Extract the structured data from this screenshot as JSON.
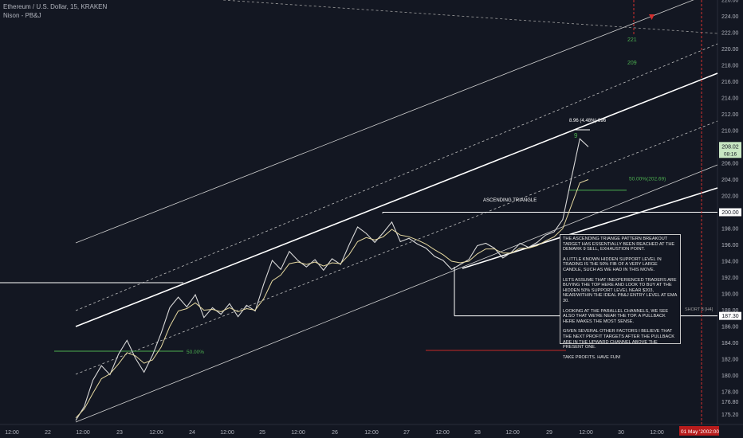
{
  "header": {
    "symbol_line": "Ethereum / U.S. Dollar, 15, KRAKEN",
    "indicator_line": "Nison - PB&J"
  },
  "colors": {
    "background": "#131722",
    "price": "#d8d8d8",
    "ema": "#e6d9a0",
    "trendline": "#ffffff",
    "fib": "#4caf50",
    "red_marker": "#d32f2f",
    "axis_text": "#b2b5be",
    "current_price_label": "#c7e6c2"
  },
  "chart_data": {
    "type": "line",
    "title": "",
    "y_axis": {
      "ylim": [
        174,
        226
      ],
      "ticks": [
        175.2,
        176.8,
        178,
        180,
        182,
        184,
        186,
        188,
        190,
        192,
        194,
        196,
        198,
        200,
        202,
        204,
        206,
        208,
        210,
        212,
        214,
        216,
        218,
        220,
        222,
        224,
        226
      ]
    },
    "x_axis": {
      "tick_labels": [
        "12:00",
        "22",
        "12:00",
        "23",
        "12:00",
        "24",
        "12:00",
        "25",
        "12:00",
        "26",
        "12:00",
        "27",
        "12:00",
        "28",
        "12:00",
        "29",
        "12:00",
        "30",
        "12:00",
        "31",
        "01 May '20",
        "02:00"
      ]
    },
    "series": [
      {
        "values": [
          174.5,
          176.2,
          179.4,
          181.2,
          180.1,
          182.6,
          184.3,
          182.1,
          180.4,
          182.5,
          185.2,
          188.3,
          189.6,
          188.4,
          189.9,
          187.1,
          188.3,
          187.5,
          188.8,
          187.2,
          188.6,
          187.9,
          191.2,
          194.1,
          193.0,
          195.2,
          194.1,
          193.3,
          194.2,
          192.9,
          194.3,
          193.6,
          196.0,
          198.2,
          197.4,
          196.3,
          197.5,
          198.8,
          196.4,
          196.8,
          196.1,
          195.6,
          194.6,
          194.1,
          193.0,
          193.6,
          194.2,
          195.9,
          196.2,
          195.6,
          194.4,
          195.1,
          196.2,
          195.7,
          196.3,
          197.2,
          197.6,
          199.1,
          204.1,
          209.0,
          208.02
        ]
      },
      {
        "values": [
          174.8,
          175.9,
          177.8,
          179.6,
          180.2,
          181.4,
          182.8,
          182.4,
          181.5,
          181.9,
          183.5,
          186.0,
          187.9,
          188.2,
          188.9,
          188.0,
          188.1,
          187.8,
          188.3,
          187.8,
          188.2,
          188.0,
          189.4,
          191.6,
          192.3,
          193.7,
          193.9,
          193.6,
          193.9,
          193.4,
          193.8,
          193.7,
          194.8,
          196.4,
          196.9,
          196.6,
          197.0,
          197.9,
          197.2,
          197.0,
          196.6,
          196.1,
          195.4,
          194.8,
          194.0,
          193.8,
          194.0,
          194.9,
          195.5,
          195.5,
          195.0,
          195.0,
          195.6,
          195.6,
          195.9,
          196.5,
          197.0,
          198.0,
          200.8,
          203.6,
          204.0
        ]
      }
    ],
    "price_levels": [
      {
        "label": "208.02",
        "value": 208.02,
        "sub_label": "08:16"
      },
      {
        "label": "200.00",
        "value": 200.0
      },
      {
        "label": "187.30",
        "value": 187.3
      }
    ],
    "annotations": {
      "ascending_triangle": "ASCENDING TRIANGLE",
      "fib_right": "50.00%(202.69)",
      "fib_left": "50.00%",
      "move_label": "8.96 (4.48%) 896",
      "demark_count": "9",
      "label_221": "221",
      "label_209": "209",
      "short_tag": "SHORT 8 [H4]"
    }
  },
  "note_box": {
    "paragraphs": [
      "THE ASCENDING TRIANGE PATTERN BREAKOUT TARGET HAS ESSENTIALLY BEEN REACHED AT THE DEMARK 9 SELL, EXHAUSTION POINT.",
      "A LITTLE KNOWN HIDDEN SUPPORT LEVEL IN TRADING IS THE 50% FIB OF A VERY LARGE CANDLE, SUCH AS WE HAD IN THIS MOVE.",
      "LETS ASSUME THAT INEXPERIENCED TRADERS ARE BUYING THE TOP HERE AND LOOK TO BUY AT THE HIDDEN 50% SUPPORT LEVEL NEAR $203, NEAR/WITHIN THE IDEAL PB&J ENTRY LEVEL AT EMA 30.",
      "LOOKING AT THE PARALLEL CHANNELS, WE SEE ALSO THAT WE'RE NEAR THE TOP. A PULLBACK HERE MAKES THE MOST SENSE.",
      "GIVEN SEVERAL OTHER FACTORS I BELIEVE THAT THE NEXT PROFIT TARGETS AFTER THE PULLBACK ARE IN THE UPWARD CHANNEL ABOVE THE PRESENT ONE.",
      "TAKE PROFITS. HAVE FUN!"
    ]
  }
}
